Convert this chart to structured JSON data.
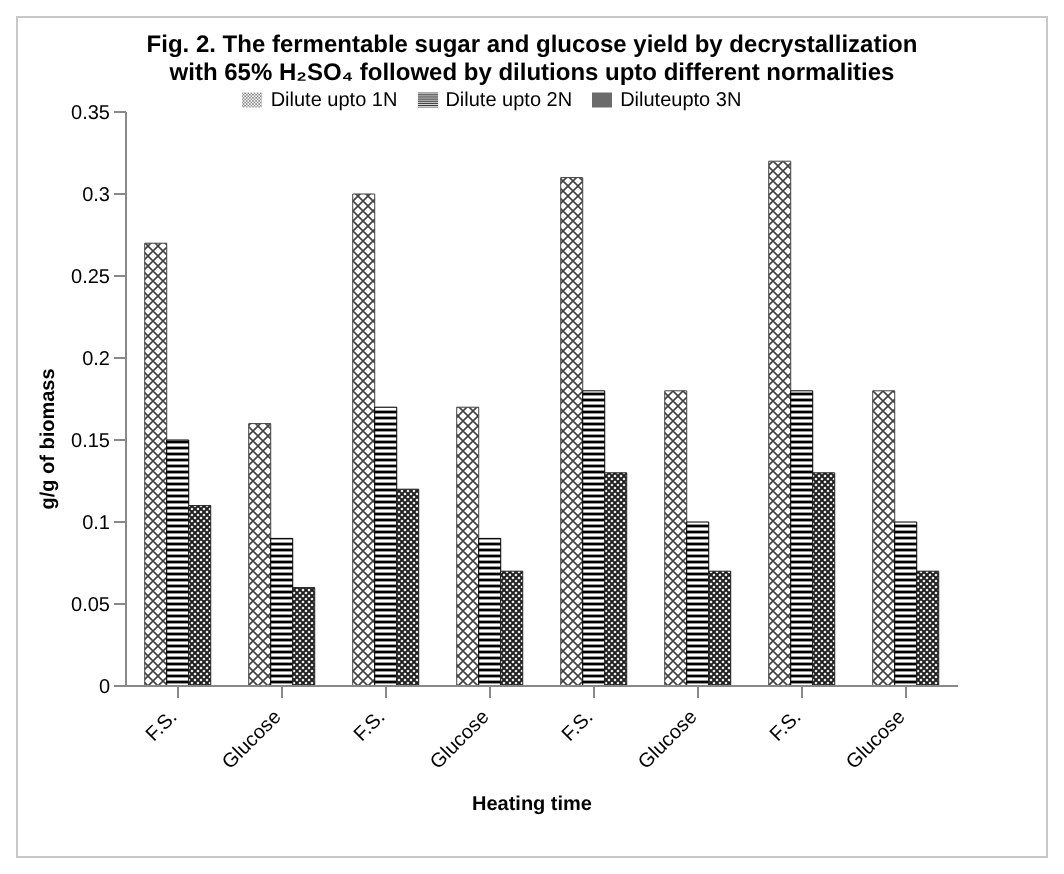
{
  "chart_data": {
    "type": "bar",
    "title": "Fig. 2. The fermentable sugar and glucose yield by decrystallization with 65% H₂SO₄ followed by dilutions upto different normalities",
    "xlabel": "Heating time",
    "ylabel": "g/g of biomass",
    "categories": [
      "F.S.",
      "Glucose",
      "F.S.",
      "Glucose",
      "F.S.",
      "Glucose",
      "F.S.",
      "Glucose"
    ],
    "series": [
      {
        "name": "Dilute upto 1N",
        "color": "#404040",
        "values": [
          0.27,
          0.16,
          0.3,
          0.17,
          0.31,
          0.18,
          0.32,
          0.18
        ]
      },
      {
        "name": "Dilute upto 2N",
        "color": "#000000",
        "values": [
          0.15,
          0.09,
          0.17,
          0.09,
          0.18,
          0.1,
          0.18,
          0.1
        ]
      },
      {
        "name": "Diluteupto 3N",
        "color": "#202020",
        "values": [
          0.11,
          0.06,
          0.12,
          0.07,
          0.13,
          0.07,
          0.13,
          0.07
        ]
      }
    ],
    "ylim": [
      0,
      0.35
    ],
    "yticks": [
      0,
      0.05,
      0.1,
      0.15,
      0.2,
      0.25,
      0.3,
      0.35
    ],
    "grid": false,
    "legend": "top"
  }
}
